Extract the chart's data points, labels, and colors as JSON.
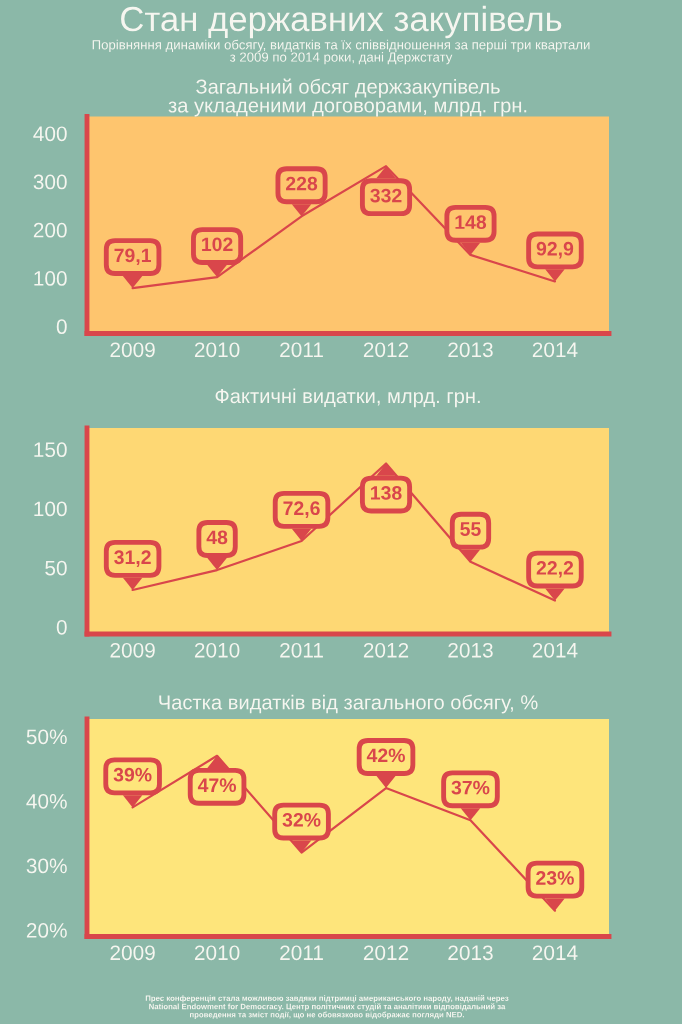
{
  "chart_data": [
    {
      "type": "other",
      "title": "Стан державних закупівель",
      "subtitle": "Порівняння динаміки обсягу, видатків та їх співвідношення за перші три квартали\nз 2009 по 2014 роки, дані Держстату",
      "annotations": [
        "Прес конференція стала можливою завдяки підтримці американського народу, наданій через\nNational Endowment for Democracy. Центр політичних студій та аналітики відповідальний за\nпроведення та зміст події, що не обовязково відображає погляди NED."
      ]
    },
    {
      "type": "line",
      "title": "Загальний обсяг держзакупівель\nза укладеними договорами, млрд. грн.",
      "categories": [
        "2009",
        "2010",
        "2011",
        "2012",
        "2013",
        "2014"
      ],
      "series": [
        {
          "color": "#d9464b",
          "values": [
            79.1,
            102,
            228,
            332,
            148,
            92.9
          ],
          "value_labels": [
            "79,1",
            "102",
            "228",
            "332",
            "148",
            "92,9"
          ]
        }
      ],
      "ylim": [
        -15,
        435
      ],
      "yticks": [
        0,
        100,
        200,
        300,
        400
      ]
    },
    {
      "type": "line",
      "title": "Фактичні видатки, млрд. грн.",
      "categories": [
        "2009",
        "2010",
        "2011",
        "2012",
        "2013",
        "2014"
      ],
      "series": [
        {
          "color": "#d9464b",
          "values": [
            31.2,
            48,
            72.6,
            138,
            55,
            22.2
          ],
          "value_labels": [
            "31,2",
            "48",
            "72,6",
            "138",
            "55",
            "22,2"
          ]
        }
      ],
      "ylim": [
        -6,
        168
      ],
      "yticks": [
        0,
        50,
        100,
        150
      ]
    },
    {
      "type": "line",
      "title": "Частка видатків від загального обсягу, %",
      "categories": [
        "2009",
        "2010",
        "2011",
        "2012",
        "2013",
        "2014"
      ],
      "series": [
        {
          "color": "#d9464b",
          "values": [
            39,
            47,
            32,
            42,
            37,
            23
          ],
          "value_labels": [
            "39%",
            "47%",
            "32%",
            "42%",
            "37%",
            "23%"
          ]
        }
      ],
      "ylim": [
        19,
        52.7
      ],
      "yticks": [
        {
          "value": 20,
          "label": "20%"
        },
        {
          "value": 30,
          "label": "30%"
        },
        {
          "value": 40,
          "label": "40%"
        },
        {
          "value": 50,
          "label": "50%"
        }
      ]
    }
  ]
}
